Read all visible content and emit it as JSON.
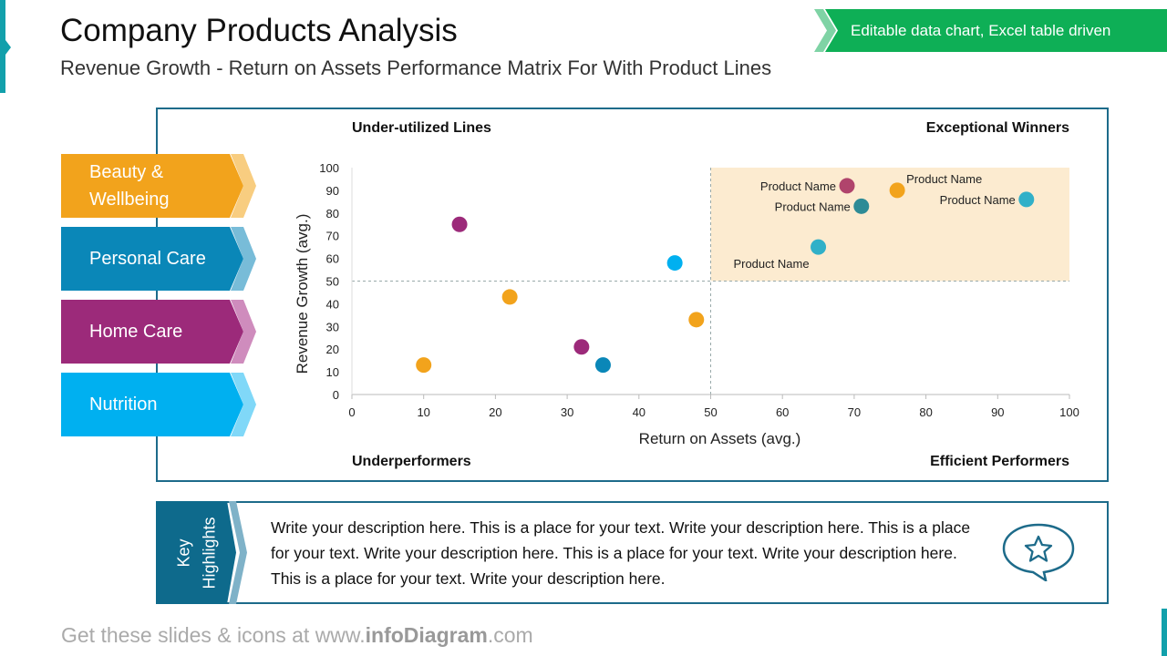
{
  "header": {
    "title": "Company Products Analysis",
    "subtitle": "Revenue Growth - Return on Assets Performance Matrix For With Product Lines",
    "badge": "Editable data chart, Excel table driven"
  },
  "categories": [
    {
      "label": "Beauty &\nWellbeing",
      "color": "#f2a31c",
      "chevron": "#f8cd80"
    },
    {
      "label": "Personal Care",
      "color": "#0a87b8",
      "chevron": "#78bcd8"
    },
    {
      "label": "Home Care",
      "color": "#9c2a7a",
      "chevron": "#cf8cbd"
    },
    {
      "label": "Nutrition",
      "color": "#00b0f0",
      "chevron": "#80d8f8"
    }
  ],
  "quadrants": {
    "top_left": "Under-utilized  Lines",
    "top_right": "Exceptional Winners",
    "bottom_left": "Underperformers",
    "bottom_right": "Efficient Performers"
  },
  "chart_data": {
    "type": "scatter",
    "xlabel": "Return on Assets (avg.)",
    "ylabel": "Revenue Growth (avg.)",
    "xlim": [
      0,
      100
    ],
    "ylim": [
      0,
      100
    ],
    "xticks": [
      0,
      10,
      20,
      30,
      40,
      50,
      60,
      70,
      80,
      90,
      100
    ],
    "yticks": [
      0,
      10,
      20,
      30,
      40,
      50,
      60,
      70,
      80,
      90,
      100
    ],
    "divider": {
      "x": 50,
      "y": 50
    },
    "highlight_region": {
      "x": [
        50,
        100
      ],
      "y": [
        50,
        100
      ],
      "color": "#fcebd0"
    },
    "points": [
      {
        "x": 15,
        "y": 75,
        "color": "#9c2a7a"
      },
      {
        "x": 22,
        "y": 43,
        "color": "#f2a31c"
      },
      {
        "x": 10,
        "y": 13,
        "color": "#f2a31c"
      },
      {
        "x": 32,
        "y": 21,
        "color": "#9c2a7a"
      },
      {
        "x": 35,
        "y": 13,
        "color": "#0a87b8"
      },
      {
        "x": 45,
        "y": 58,
        "color": "#00b0f0"
      },
      {
        "x": 48,
        "y": 33,
        "color": "#f2a31c"
      },
      {
        "x": 65,
        "y": 65,
        "color": "#31b0c8",
        "label": "Product Name",
        "label_pos": "below-left"
      },
      {
        "x": 69,
        "y": 92,
        "color": "#b0446c",
        "label": "Product Name",
        "label_pos": "left"
      },
      {
        "x": 71,
        "y": 83,
        "color": "#2e8b96",
        "label": "Product Name",
        "label_pos": "left"
      },
      {
        "x": 76,
        "y": 90,
        "color": "#f2a31c",
        "label": "Product Name",
        "label_pos": "above-right"
      },
      {
        "x": 94,
        "y": 86,
        "color": "#31b0c8",
        "label": "Product Name",
        "label_pos": "left"
      }
    ]
  },
  "highlights": {
    "label": "Key\nHighlights",
    "text": "Write your description here. This is a place for your text. Write your description here. This is a place for your text. Write your description here. This is a place for your text. Write your description here. This is a place for your text. Write your description here.",
    "icon": "speech-bubble-star-icon"
  },
  "footer": {
    "prefix": "Get these slides & icons at www.",
    "brand": "infoDiagram",
    "suffix": ".com"
  }
}
